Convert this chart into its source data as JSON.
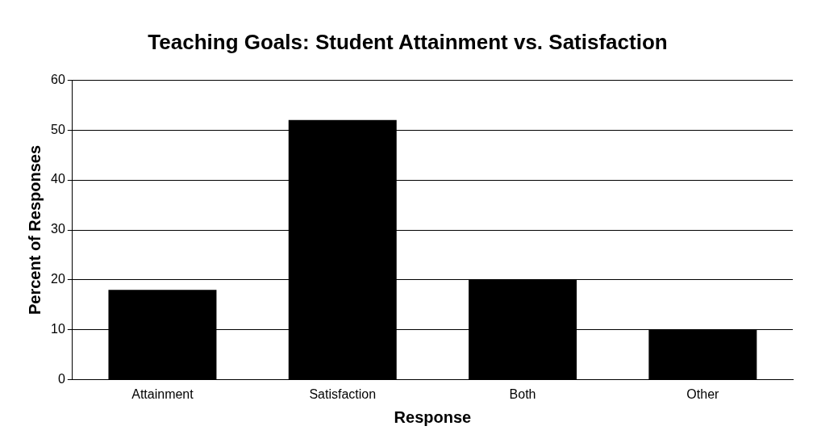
{
  "chart_data": {
    "type": "bar",
    "title": "Teaching Goals: Student Attainment vs. Satisfaction",
    "xlabel": "Response",
    "ylabel": "Percent of Responses",
    "categories": [
      "Attainment",
      "Satisfaction",
      "Both",
      "Other"
    ],
    "values": [
      18,
      52,
      20,
      10
    ],
    "color": "#000000",
    "ylim": [
      0,
      60
    ],
    "yticks": [
      0,
      10,
      20,
      30,
      40,
      50,
      60
    ],
    "grid": "y",
    "legend": false
  }
}
